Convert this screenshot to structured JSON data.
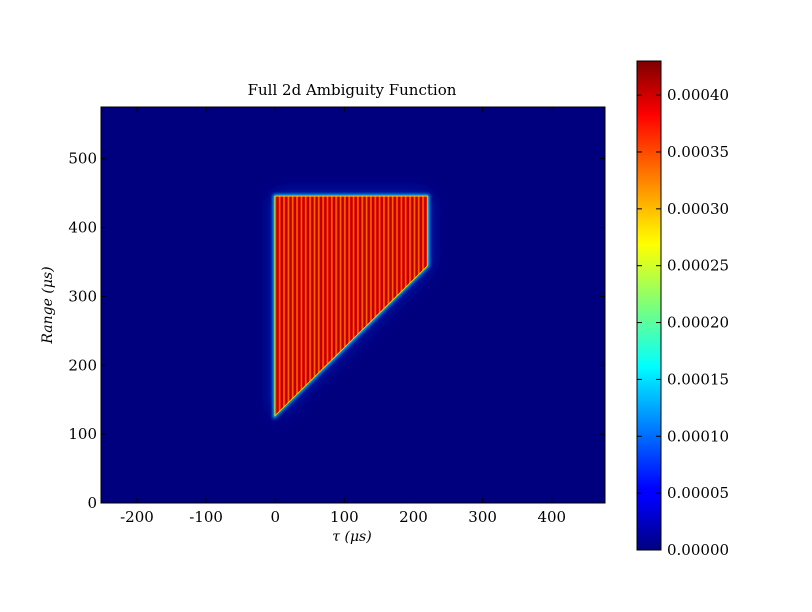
{
  "chart_data": {
    "type": "heatmap",
    "title": "Full 2d Ambiguity Function",
    "xlabel": "τ (μs)",
    "ylabel": "Range (μs)",
    "xlim": [
      -252,
      477
    ],
    "ylim": [
      0,
      575
    ],
    "xticks": [
      -200,
      -100,
      0,
      100,
      200,
      300,
      400
    ],
    "yticks": [
      0,
      100,
      200,
      300,
      400,
      500
    ],
    "colorbar": {
      "vmin": 0.0,
      "vmax": 0.00043,
      "ticks": [
        "0.00000",
        "0.00005",
        "0.00010",
        "0.00015",
        "0.00020",
        "0.00025",
        "0.00030",
        "0.00035",
        "0.00040"
      ],
      "tick_values": [
        0.0,
        5e-05,
        0.0001,
        0.00015,
        0.0002,
        0.00025,
        0.0003,
        0.00035,
        0.0004
      ],
      "colormap": "jet"
    },
    "background_value": 0.0,
    "high_region": {
      "shape": "polygon",
      "vertices_tau_range": [
        [
          0,
          128
        ],
        [
          0,
          445
        ],
        [
          220,
          445
        ],
        [
          220,
          345
        ]
      ],
      "stripe_count": 35,
      "stripe_value": 0.00041,
      "edge_value": 0.00025
    },
    "colors": {
      "background": "#00007f",
      "stripe_high": "#b80000",
      "stripe_mid": "#ff2a00",
      "edge": "#ffe000",
      "glow": "#00d8ff"
    }
  }
}
